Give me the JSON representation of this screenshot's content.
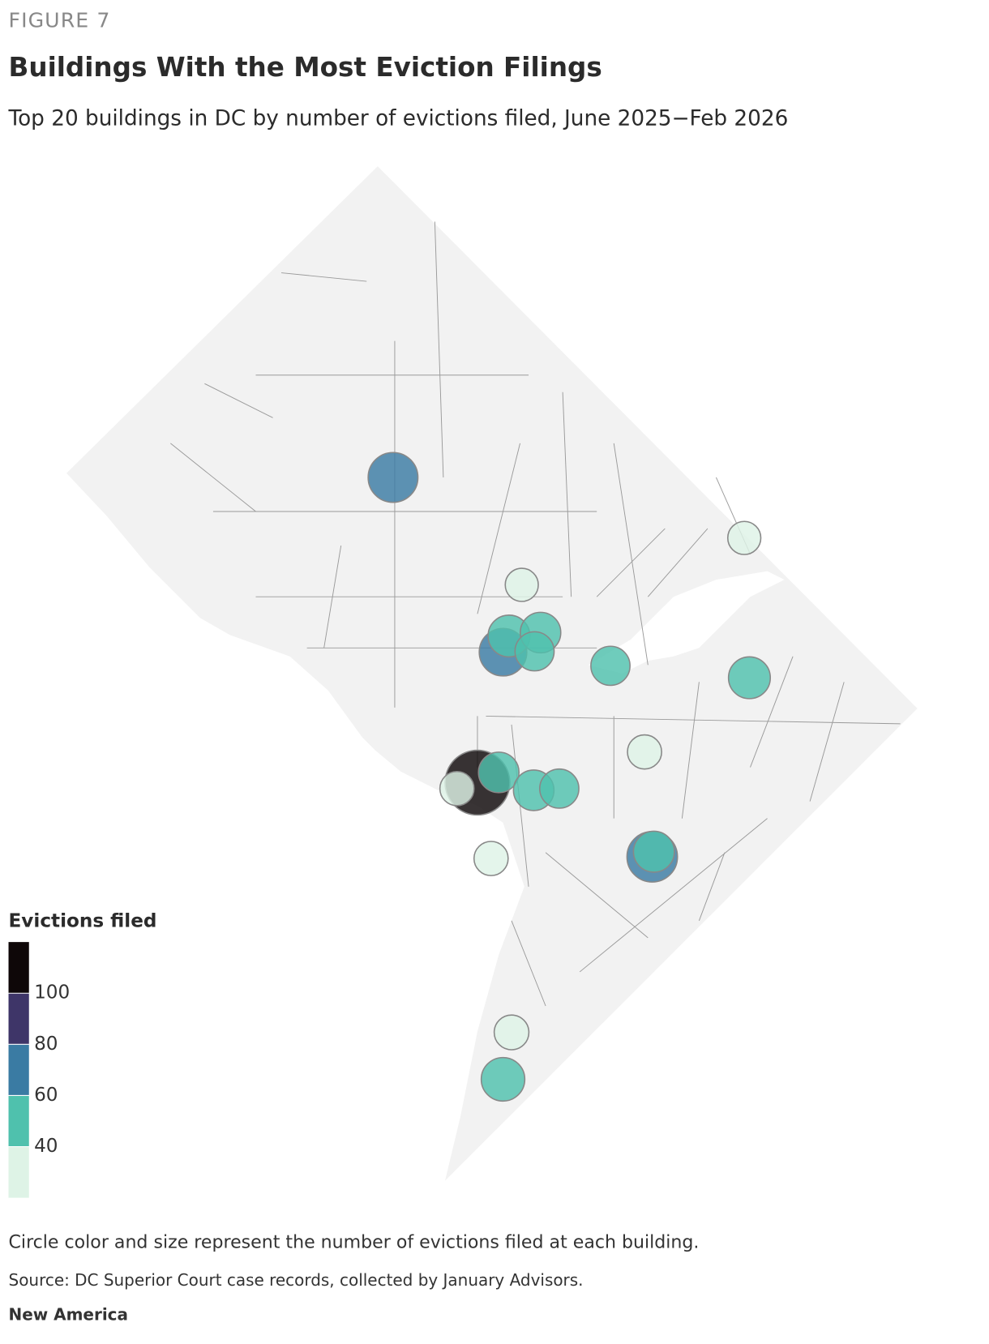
{
  "figure_label": "FIGURE 7",
  "title": "Buildings With the Most Eviction Filings",
  "subtitle": "Top 20 buildings in DC by number of evictions filed, June 2025−Feb 2026",
  "legend": {
    "title": "Evictions filed",
    "ticks": [
      40,
      60,
      80,
      100
    ],
    "colors": [
      "#def3e6",
      "#4fc1ad",
      "#3a7ba3",
      "#3e3568",
      "#0e0708"
    ]
  },
  "buildings": {
    "values": [
      68,
      30,
      30,
      48,
      45,
      62,
      42,
      42,
      48,
      32,
      115,
      45,
      45,
      42,
      32,
      32,
      70,
      46,
      33,
      52
    ]
  },
  "note": "Circle color and size represent the number of evictions filed at each building.",
  "source": "Source: DC Superior Court case records, collected by January Advisors.",
  "organization": "New America"
}
